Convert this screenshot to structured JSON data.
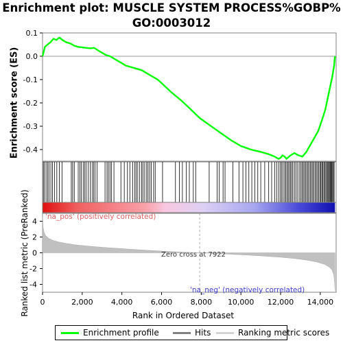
{
  "title_line1": "Enrichment plot: MUSCLE SYSTEM PROCESS%GOBP%",
  "title_line2": "GO:0003012",
  "legend": {
    "items": [
      {
        "label": "Enrichment profile",
        "color": "#00ff00"
      },
      {
        "label": "Hits",
        "color": "#808080"
      },
      {
        "label": "Ranking metric scores",
        "color": "#d3d3d3"
      }
    ]
  },
  "colors": {
    "enrichment": "#00ff00",
    "hit": "#000000",
    "metric_fill": "#c0c0c0",
    "pos_label": "#e06060",
    "neg_label": "#4040d0"
  },
  "chart_data": [
    {
      "type": "line",
      "name": "enrichment-score",
      "ylabel": "Enrichment score (ES)",
      "xlim": [
        0,
        14800
      ],
      "ylim": [
        -0.45,
        0.1
      ],
      "y_ticks": [
        0.1,
        0.0,
        -0.1,
        -0.2,
        -0.3,
        -0.4
      ],
      "y_tick_labels": [
        "0.1",
        "0.0",
        "-0.1",
        "-0.2",
        "-0.3",
        "-0.4"
      ],
      "x": [
        0,
        120,
        250,
        400,
        550,
        700,
        850,
        1000,
        1200,
        1400,
        1600,
        1800,
        2000,
        2200,
        2400,
        2600,
        2800,
        3000,
        3200,
        3400,
        3600,
        3800,
        4000,
        4200,
        4400,
        4600,
        4800,
        5000,
        5200,
        5400,
        5600,
        5800,
        6000,
        6500,
        7000,
        7500,
        7922,
        8500,
        9000,
        9500,
        10000,
        10500,
        11000,
        11400,
        11700,
        11900,
        12000,
        12100,
        12200,
        12300,
        12500,
        12700,
        12900,
        13100,
        13300,
        13500,
        13700,
        13900,
        14100,
        14250,
        14400,
        14500,
        14600,
        14700,
        14740
      ],
      "y": [
        0.0,
        0.04,
        0.05,
        0.06,
        0.075,
        0.07,
        0.08,
        0.07,
        0.06,
        0.055,
        0.045,
        0.04,
        0.038,
        0.036,
        0.034,
        0.036,
        0.025,
        0.015,
        0.005,
        0.0,
        -0.01,
        -0.02,
        -0.03,
        -0.04,
        -0.045,
        -0.05,
        -0.055,
        -0.06,
        -0.07,
        -0.08,
        -0.09,
        -0.1,
        -0.115,
        -0.155,
        -0.19,
        -0.23,
        -0.265,
        -0.3,
        -0.33,
        -0.36,
        -0.385,
        -0.4,
        -0.41,
        -0.42,
        -0.43,
        -0.44,
        -0.435,
        -0.425,
        -0.43,
        -0.44,
        -0.425,
        -0.415,
        -0.425,
        -0.43,
        -0.41,
        -0.38,
        -0.35,
        -0.32,
        -0.27,
        -0.23,
        -0.17,
        -0.13,
        -0.09,
        -0.04,
        0.0
      ]
    },
    {
      "type": "hits",
      "name": "gene-set-hits",
      "x": [
        40,
        100,
        180,
        260,
        330,
        420,
        500,
        600,
        720,
        850,
        980,
        1450,
        1520,
        1600,
        1800,
        1880,
        1950,
        2050,
        2120,
        2200,
        2300,
        2400,
        2500,
        2580,
        2650,
        2750,
        3150,
        3250,
        3320,
        3400,
        3480,
        3600,
        3950,
        4120,
        4280,
        4400,
        4550,
        4650,
        4720,
        4800,
        4900,
        5000,
        5060,
        5150,
        5250,
        5320,
        5400,
        5480,
        5600,
        5680,
        6050,
        6700,
        6900,
        7050,
        7250,
        7400,
        7600,
        7720,
        8400,
        8800,
        8900,
        9100,
        9200,
        9600,
        9900,
        10100,
        10250,
        10400,
        10550,
        10700,
        10850,
        11000,
        11200,
        11400,
        11550,
        11700,
        11800,
        11900,
        11980,
        12050,
        12120,
        12200,
        12260,
        12320,
        12380,
        12440,
        12500,
        12560,
        12620,
        12700,
        12780,
        12860,
        12940,
        13020,
        13080,
        13140,
        13200,
        13260,
        13320,
        13380,
        13440,
        13500,
        13560,
        13620,
        13680,
        13740,
        13800,
        13860,
        13920,
        13980,
        14030,
        14080,
        14130,
        14180,
        14230,
        14280,
        14330,
        14380,
        14420,
        14460,
        14500,
        14540,
        14580,
        14620,
        14660,
        14700
      ]
    },
    {
      "type": "heat-strip",
      "name": "rank-color-strip",
      "annotations": [
        "'na_pos' (positively correlated)",
        "'na_neg' (negatively correlated)"
      ]
    },
    {
      "type": "area",
      "name": "ranked-list-metric",
      "xlabel": "Rank in Ordered Dataset",
      "ylabel": "Ranked list metric (PreRanked)",
      "xlim": [
        0,
        14800
      ],
      "ylim": [
        -5,
        5
      ],
      "x_ticks": [
        0,
        2000,
        4000,
        6000,
        8000,
        10000,
        12000,
        14000
      ],
      "x_tick_labels": [
        "0",
        "2,000",
        "4,000",
        "6,000",
        "8,000",
        "10,000",
        "12,000",
        "14,000"
      ],
      "y_ticks": [
        4,
        2,
        0,
        -2,
        -4
      ],
      "y_tick_labels": [
        "4",
        "2",
        "0",
        "-2",
        "-4"
      ],
      "zero_cross": 7922,
      "zero_cross_label": "Zero cross at 7922",
      "x": [
        0,
        30,
        80,
        150,
        300,
        500,
        800,
        1200,
        1700,
        2300,
        3000,
        3800,
        4600,
        5400,
        6200,
        7000,
        7922,
        8800,
        9600,
        10400,
        11200,
        12000,
        12700,
        13300,
        13800,
        14200,
        14450,
        14600,
        14680,
        14720,
        14740
      ],
      "y": [
        4.6,
        3.2,
        2.6,
        2.2,
        1.85,
        1.6,
        1.38,
        1.18,
        1.0,
        0.85,
        0.7,
        0.56,
        0.42,
        0.3,
        0.19,
        0.09,
        0.0,
        -0.1,
        -0.2,
        -0.3,
        -0.42,
        -0.56,
        -0.72,
        -0.92,
        -1.15,
        -1.45,
        -1.8,
        -2.2,
        -2.8,
        -3.8,
        -4.8
      ]
    }
  ]
}
